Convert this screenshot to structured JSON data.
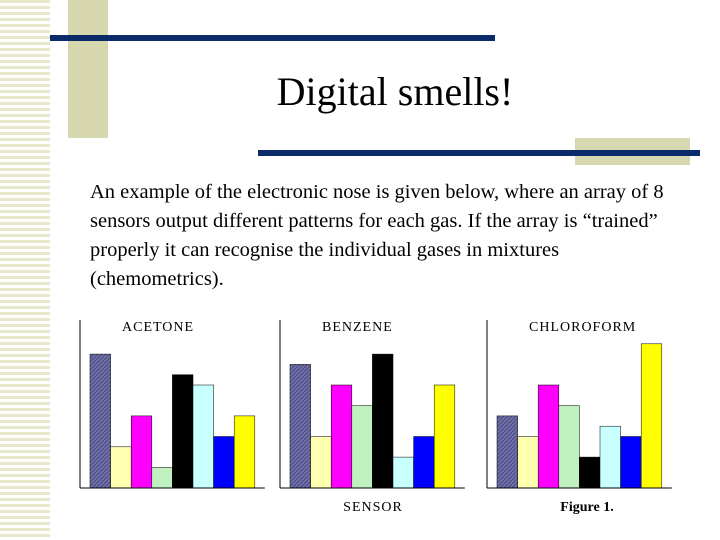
{
  "title": "Digital smells!",
  "body": "An example of the electronic nose is given below, where an array of 8 sensors output different patterns for each gas. If the array is “trained” properly it can recognise the individual gases in mixtures (chemometrics).",
  "x_label": "SENSOR",
  "caption": "Figure 1.",
  "chart_data": [
    {
      "type": "bar",
      "title": "ACETONE",
      "values": [
        13,
        4,
        7,
        2,
        11,
        10,
        5,
        7
      ],
      "colors": [
        "#7070a8",
        "#ffffb0",
        "#ff00ff",
        "#c0f0c0",
        "#000000",
        "#c8ffff",
        "#0000ff",
        "#ffff00"
      ]
    },
    {
      "type": "bar",
      "title": "BENZENE",
      "values": [
        12,
        5,
        10,
        8,
        13,
        3,
        5,
        10
      ],
      "colors": [
        "#7070a8",
        "#ffffb0",
        "#ff00ff",
        "#c0f0c0",
        "#000000",
        "#c8ffff",
        "#0000ff",
        "#ffff00"
      ]
    },
    {
      "type": "bar",
      "title": "CHLOROFORM",
      "values": [
        7,
        5,
        10,
        8,
        3,
        6,
        5,
        14
      ],
      "colors": [
        "#7070a8",
        "#ffffb0",
        "#ff00ff",
        "#c0f0c0",
        "#000000",
        "#c8ffff",
        "#0000ff",
        "#ffff00"
      ]
    }
  ]
}
